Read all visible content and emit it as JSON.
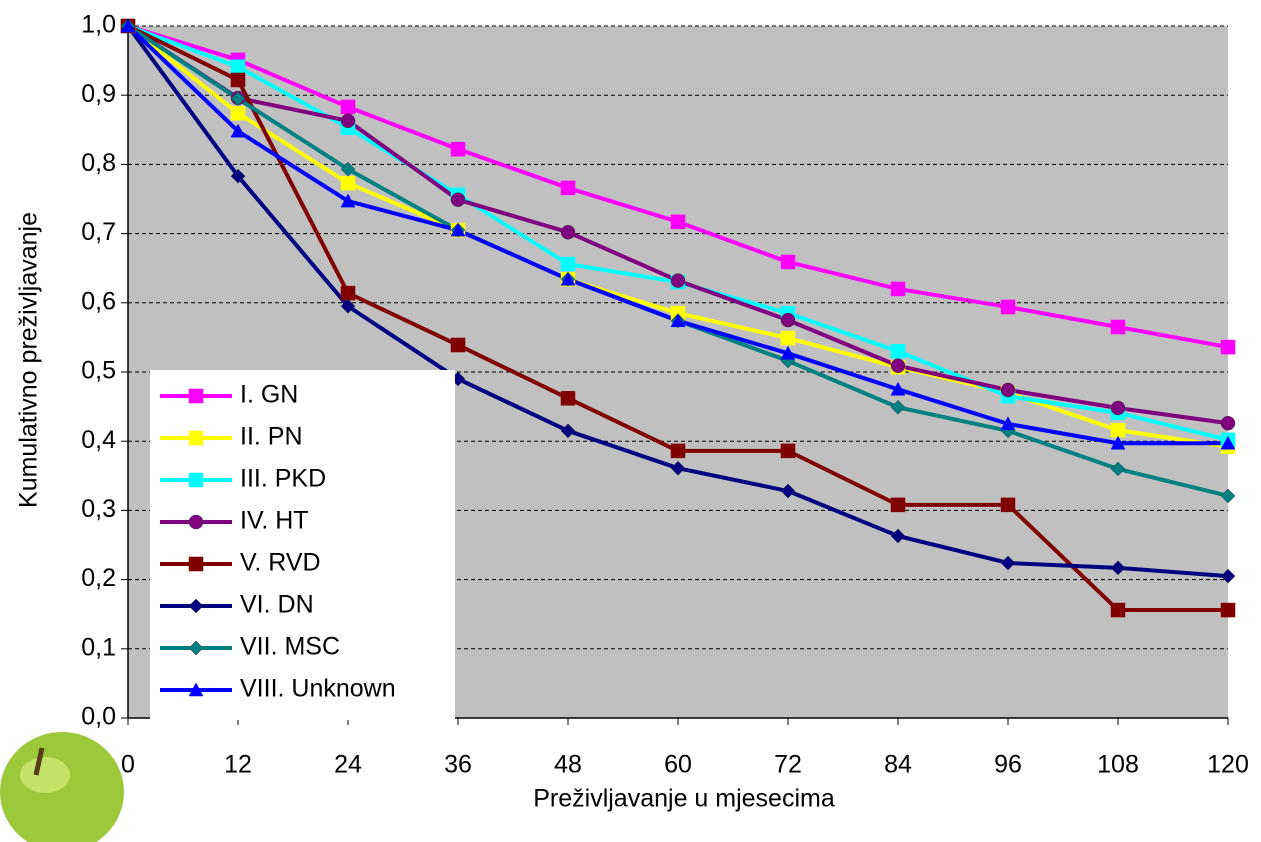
{
  "chart_data": {
    "type": "line",
    "x_label": "Preživljavanje u mjesecima",
    "y_label": "Kumulativno preživljavanje",
    "x": [
      0,
      12,
      24,
      36,
      48,
      60,
      72,
      84,
      96,
      108,
      120
    ],
    "xlim": [
      0,
      120
    ],
    "xticks": [
      0,
      12,
      24,
      36,
      48,
      60,
      72,
      84,
      96,
      108,
      120
    ],
    "ylim": [
      0,
      1
    ],
    "yticks": [
      {
        "value": 0,
        "label": "0,0"
      },
      {
        "value": 0.1,
        "label": "0,1"
      },
      {
        "value": 0.2,
        "label": "0,2"
      },
      {
        "value": 0.3,
        "label": "0,3"
      },
      {
        "value": 0.4,
        "label": "0,4"
      },
      {
        "value": 0.5,
        "label": "0,5"
      },
      {
        "value": 0.6,
        "label": "0,6"
      },
      {
        "value": 0.7,
        "label": "0,7"
      },
      {
        "value": 0.8,
        "label": "0,8"
      },
      {
        "value": 0.9,
        "label": "0,9"
      },
      {
        "value": 1,
        "label": "1,0"
      }
    ],
    "grid": true,
    "legend": "lower-left",
    "series": [
      {
        "name": "I. GN",
        "color": "#ff00ff",
        "marker": "square",
        "values": [
          1.0,
          0.951,
          0.883,
          0.822,
          0.766,
          0.717,
          0.659,
          0.62,
          0.594,
          0.565,
          0.536
        ]
      },
      {
        "name": "II. PN",
        "color": "#ffff00",
        "marker": "square",
        "values": [
          1.0,
          0.874,
          0.773,
          0.705,
          0.634,
          0.585,
          0.549,
          0.507,
          0.47,
          0.416,
          0.392
        ]
      },
      {
        "name": "III. PKD",
        "color": "#00ffff",
        "marker": "square",
        "values": [
          1.0,
          0.941,
          0.853,
          0.756,
          0.656,
          0.63,
          0.585,
          0.53,
          0.465,
          0.441,
          0.402
        ]
      },
      {
        "name": "IV. HT",
        "color": "#800080",
        "marker": "circle",
        "values": [
          1.0,
          0.896,
          0.863,
          0.749,
          0.702,
          0.632,
          0.575,
          0.509,
          0.474,
          0.448,
          0.426
        ]
      },
      {
        "name": "V. RVD",
        "color": "#800000",
        "marker": "square",
        "values": [
          1.0,
          0.922,
          0.614,
          0.539,
          0.462,
          0.386,
          0.386,
          0.308,
          0.308,
          0.156,
          0.156
        ]
      },
      {
        "name": "VI. DN",
        "color": "#000080",
        "marker": "diamond",
        "values": [
          1.0,
          0.783,
          0.595,
          0.49,
          0.415,
          0.361,
          0.328,
          0.263,
          0.224,
          0.217,
          0.205
        ]
      },
      {
        "name": "VII. MSC",
        "color": "#008080",
        "marker": "diamond",
        "values": [
          1.0,
          0.895,
          0.793,
          0.705,
          0.634,
          0.574,
          0.516,
          0.449,
          0.415,
          0.36,
          0.321
        ]
      },
      {
        "name": "VIII. Unknown",
        "color": "#0000ff",
        "marker": "triangle",
        "values": [
          1.0,
          0.848,
          0.747,
          0.705,
          0.634,
          0.574,
          0.527,
          0.475,
          0.425,
          0.397,
          0.397
        ]
      }
    ]
  }
}
